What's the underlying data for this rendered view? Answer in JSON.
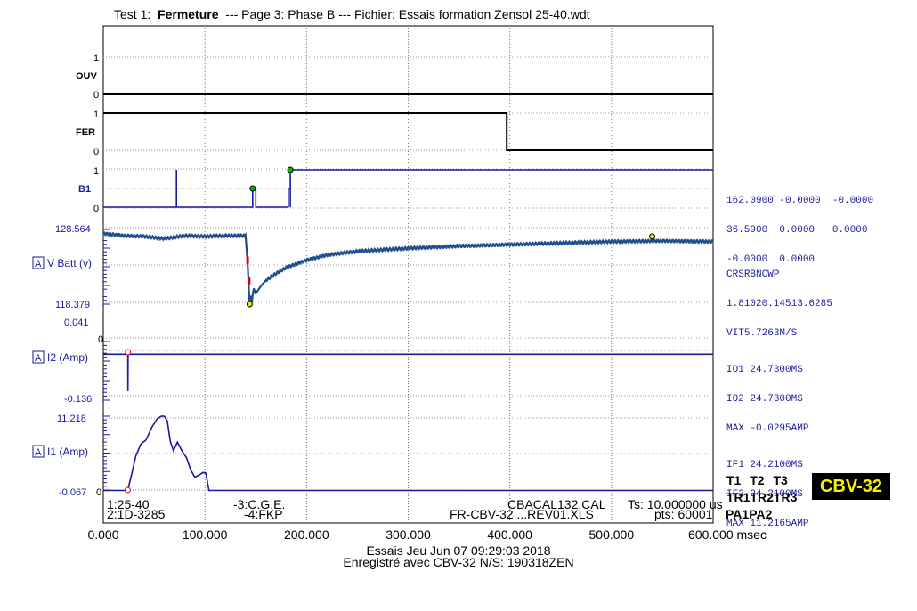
{
  "header": {
    "prefix": "Test 1:",
    "test_name": "Fermeture",
    "page": "--- Page 3: Phase B --- Fichier: Essais formation Zensol 25-40.wdt"
  },
  "channels": {
    "ouv": {
      "label": "OUV",
      "top": "1",
      "bottom": "0"
    },
    "fer": {
      "label": "FER",
      "top": "1",
      "bottom": "0"
    },
    "b1": {
      "label": "B1",
      "top": "1",
      "bottom": "0"
    },
    "vbatt": {
      "label": "V Batt (v)",
      "max": "128.564",
      "min": "118.379",
      "badge": "A"
    },
    "i2": {
      "label": "I2 (Amp)",
      "max": "0.041",
      "zero": "0",
      "min": "-0.136",
      "badge": "A"
    },
    "i1": {
      "label": "I1 (Amp)",
      "max": "11.218",
      "min": "-0.067",
      "zero": "0",
      "badge": "A"
    }
  },
  "measurements": {
    "digital": [
      [
        "162.0900",
        "-0.0000",
        "-0.0000"
      ],
      [
        "36.5900",
        "0.0000",
        "0.0000"
      ],
      [
        "-0.0000",
        "0.0000",
        ""
      ]
    ],
    "vbatt": [
      [
        "CRS",
        "RBN",
        "CWP"
      ],
      [
        "1.8102",
        "0.1451",
        "3.6285"
      ],
      [
        "VIT",
        "5.7263",
        "M/S"
      ]
    ],
    "i2": [
      [
        "IO1",
        "24.7300",
        "MS"
      ],
      [
        "IO2",
        "24.7300",
        "MS"
      ],
      [
        "MAX",
        "-0.0295",
        "AMP"
      ]
    ],
    "i1": [
      [
        "IF1",
        "24.2100",
        "MS"
      ],
      [
        "IF2",
        "24.2100",
        "MS"
      ],
      [
        "MAX",
        "11.2165",
        "AMP"
      ]
    ]
  },
  "tbuttons": {
    "row1": [
      "T1",
      "T2",
      "T3"
    ],
    "row2": [
      "TR1",
      "TR2",
      "TR3"
    ],
    "pa": [
      "PA1",
      "PA2"
    ]
  },
  "badge_text": "CBV-32",
  "bottom_info": {
    "l1": "1:25-40",
    "l2": "2:1D-3285",
    "m1": "-3:C.G.E.",
    "m2": "-4:FKP",
    "r1": "CBACAL132.CAL",
    "r2": "FR-CBV-32 ...REV01.XLS",
    "ts": "Ts: 10.000000 us",
    "pts": "pts: 60001"
  },
  "footer": {
    "line1": "Essais   Jeu Jun 07 09:29:03 2018",
    "line2": "Enregistré avec CBV-32 N/S: 190318ZEN"
  },
  "chart_data": {
    "type": "line",
    "x_unit": "msec",
    "xlim": [
      0,
      600
    ],
    "x_ticks": [
      "0.000",
      "100.000",
      "200.000",
      "300.000",
      "400.000",
      "500.000",
      "600.000 msec"
    ],
    "grid": true,
    "series": [
      {
        "name": "OUV",
        "color": "#000000",
        "x": [
          0,
          600
        ],
        "y": [
          0,
          0
        ]
      },
      {
        "name": "FER",
        "color": "#000000",
        "x": [
          0,
          397,
          397,
          600
        ],
        "y": [
          1,
          1,
          0,
          0
        ]
      },
      {
        "name": "B1",
        "color": "#1a1a9a",
        "x": [
          0,
          72,
          72,
          72,
          147,
          147,
          150,
          150,
          182,
          182,
          184,
          184,
          184,
          184,
          600
        ],
        "y": [
          0,
          0,
          1,
          0,
          0,
          0.5,
          0.5,
          0,
          0,
          0.5,
          0.5,
          0,
          0.5,
          1,
          1
        ]
      },
      {
        "name": "V Batt (v)",
        "color": "#1f4e8c",
        "x": [
          0,
          20,
          40,
          60,
          80,
          100,
          120,
          140,
          142,
          143,
          144,
          145,
          146,
          148,
          150,
          155,
          160,
          170,
          180,
          200,
          220,
          250,
          300,
          350,
          400,
          450,
          500,
          550,
          600
        ],
        "y": [
          127.9,
          127.6,
          127.5,
          127.2,
          127.6,
          127.5,
          127.6,
          127.6,
          124.0,
          121.0,
          118.38,
          119.5,
          118.6,
          120.5,
          119.8,
          120.8,
          121.6,
          122.5,
          123.3,
          124.3,
          125.0,
          125.5,
          125.9,
          126.2,
          126.4,
          126.6,
          126.8,
          126.9,
          126.8
        ]
      },
      {
        "name": "I2 (Amp)",
        "color": "#1a1a9a",
        "x": [
          0,
          24.2,
          24.3,
          24.4,
          24.5,
          600
        ],
        "y": [
          -0.01,
          -0.01,
          -0.12,
          0.0,
          -0.01,
          -0.01
        ]
      },
      {
        "name": "I1 (Amp)",
        "color": "#1a1a9a",
        "x": [
          0,
          24,
          28,
          32,
          37,
          42,
          48,
          53,
          57,
          60,
          63,
          66,
          69,
          73,
          77,
          82,
          86,
          90,
          94,
          98,
          101,
          103,
          104,
          600
        ],
        "y": [
          0,
          0,
          2.5,
          5.2,
          7.0,
          7.6,
          9.6,
          10.8,
          11.2,
          11.2,
          10.5,
          7.4,
          6.0,
          7.3,
          6.1,
          4.9,
          3.1,
          2.0,
          2.3,
          2.7,
          2.6,
          0.8,
          0,
          0
        ]
      }
    ]
  }
}
